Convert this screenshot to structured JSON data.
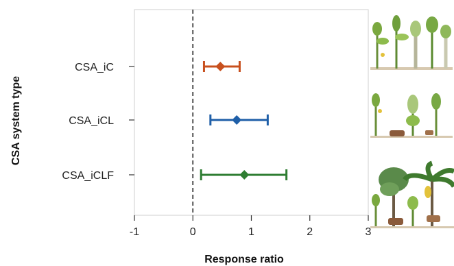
{
  "chart_data": {
    "type": "forest",
    "title": "",
    "xlabel": "Response ratio",
    "ylabel": "CSA system type",
    "xlim": [
      -1,
      3
    ],
    "xticks": [
      -1,
      0,
      1,
      2,
      3
    ],
    "reference_line_x": 0,
    "grid": false,
    "legend": "none",
    "series": [
      {
        "category": "CSA_iC",
        "estimate": 0.47,
        "ci_low": 0.19,
        "ci_high": 0.8,
        "color": "#c8501e"
      },
      {
        "category": "CSA_iCL",
        "estimate": 0.75,
        "ci_low": 0.3,
        "ci_high": 1.28,
        "color": "#1f5fa8"
      },
      {
        "category": "CSA_iCLF",
        "estimate": 0.88,
        "ci_low": 0.14,
        "ci_high": 1.6,
        "color": "#2e7d32"
      }
    ],
    "illustrations": [
      "crop-plants-icon",
      "crop-livestock-icon",
      "crop-livestock-forest-icon"
    ]
  }
}
